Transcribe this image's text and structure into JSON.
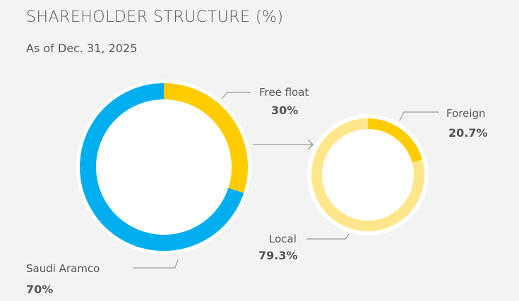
{
  "header": {
    "title": "SHAREHOLDER STRUCTURE (%)",
    "subtitle": "As of Dec. 31, 2025"
  },
  "colors": {
    "blue": "#00aeef",
    "yellow": "#ffcc00",
    "light_yellow": "#ffe68a",
    "leader": "#9a9a9a"
  },
  "chart_data": [
    {
      "type": "pie",
      "style": "donut",
      "title": "",
      "slices": [
        {
          "label": "Free float",
          "value": 30,
          "value_text": "30%",
          "color": "#ffcc00"
        },
        {
          "label": "Saudi Aramco",
          "value": 70,
          "value_text": "70%",
          "color": "#00aeef"
        }
      ]
    },
    {
      "type": "pie",
      "style": "donut",
      "title": "",
      "slices": [
        {
          "label": "Foreign",
          "value": 20.7,
          "value_text": "20.7%",
          "color": "#ffcc00"
        },
        {
          "label": "Local",
          "value": 79.3,
          "value_text": "79.3%",
          "color": "#ffe68a"
        }
      ]
    }
  ]
}
